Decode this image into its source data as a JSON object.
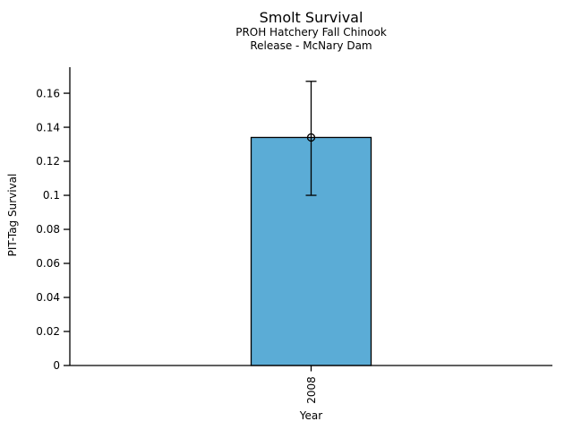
{
  "chart_data": {
    "type": "bar",
    "title": "Smolt Survival",
    "subtitle": [
      "PROH Hatchery Fall Chinook",
      "Release - McNary Dam"
    ],
    "xlabel": "Year",
    "ylabel": "PIT-Tag Survival",
    "categories": [
      "2008"
    ],
    "values": [
      0.134
    ],
    "error_bars": [
      {
        "lower": 0.1,
        "upper": 0.167
      }
    ],
    "marker": "open-circle",
    "ytick_labels": [
      "0",
      "0.02",
      "0.04",
      "0.06",
      "0.08",
      "0.1",
      "0.12",
      "0.14",
      "0.16"
    ],
    "ylim": [
      0,
      0.1753
    ],
    "grid": false,
    "legend": "none",
    "colors": {
      "bar_fill": "#5BACD6",
      "bar_edge": "#000000",
      "error_bar": "#000000",
      "axis": "#000000",
      "text": "#000000",
      "background": "#FFFFFF"
    }
  }
}
